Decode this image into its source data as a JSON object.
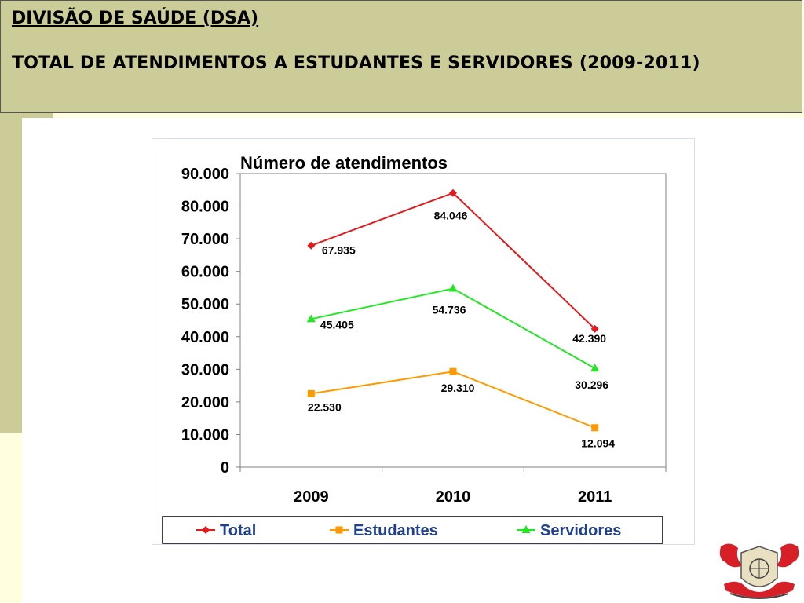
{
  "header": {
    "title": "DIVISÃO DE SAÚDE (DSA)",
    "subtitle": "TOTAL DE ATENDIMENTOS A ESTUDANTES E SERVIDORES (2009-2011)"
  },
  "chart_data": {
    "type": "line",
    "title": "Número de atendimentos",
    "xlabel": "",
    "ylabel": "",
    "categories": [
      "2009",
      "2010",
      "2011"
    ],
    "ylim": [
      0,
      90000
    ],
    "yticks": [
      "0",
      "10.000",
      "20.000",
      "30.000",
      "40.000",
      "50.000",
      "60.000",
      "70.000",
      "80.000",
      "90.000"
    ],
    "grid": false,
    "legend_position": "bottom",
    "series": [
      {
        "name": "Total",
        "values": [
          67935,
          84046,
          42390
        ],
        "labels": [
          "67.935",
          "84.046",
          "42.390"
        ],
        "color": "#e31a1c",
        "marker": "diamond"
      },
      {
        "name": "Estudantes",
        "values": [
          22530,
          29310,
          12094
        ],
        "labels": [
          "22.530",
          "29.310",
          "12.094"
        ],
        "color": "#ff9900",
        "marker": "square"
      },
      {
        "name": "Servidores",
        "values": [
          45405,
          54736,
          30296
        ],
        "labels": [
          "45.405",
          "54.736",
          "30.296"
        ],
        "color": "#22e622",
        "marker": "triangle"
      }
    ]
  }
}
